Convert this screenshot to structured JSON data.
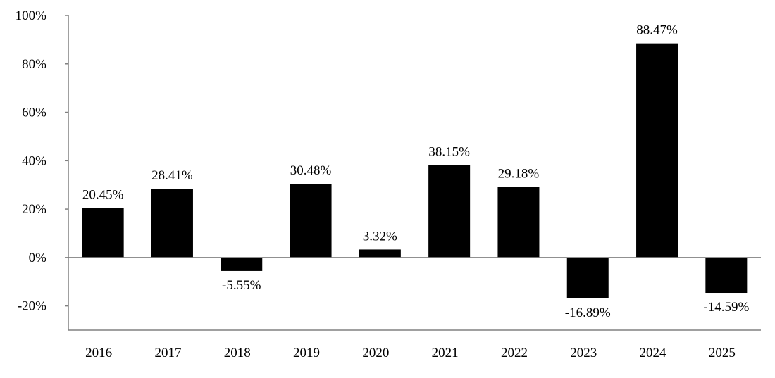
{
  "chart_data": {
    "type": "bar",
    "categories": [
      "2016",
      "2017",
      "2018",
      "2019",
      "2020",
      "2021",
      "2022",
      "2023",
      "2024",
      "2025"
    ],
    "values": [
      20.45,
      28.41,
      -5.55,
      30.48,
      3.32,
      38.15,
      29.18,
      -16.89,
      88.47,
      -14.59
    ],
    "data_labels": [
      "20.45%",
      "28.41%",
      "-5.55%",
      "30.48%",
      "3.32%",
      "38.15%",
      "29.18%",
      "-16.89%",
      "88.47%",
      "-14.59%"
    ],
    "y_ticks": [
      100,
      80,
      60,
      40,
      20,
      0,
      -20
    ],
    "y_tick_labels": [
      "100%",
      "80%",
      "60%",
      "40%",
      "20%",
      "0%",
      "-20%"
    ],
    "ylim": [
      -30,
      100
    ],
    "title": "",
    "xlabel": "",
    "ylabel": "",
    "grid": false,
    "legend": "none",
    "bar_color": "#000000",
    "axis_color": "#808080"
  }
}
